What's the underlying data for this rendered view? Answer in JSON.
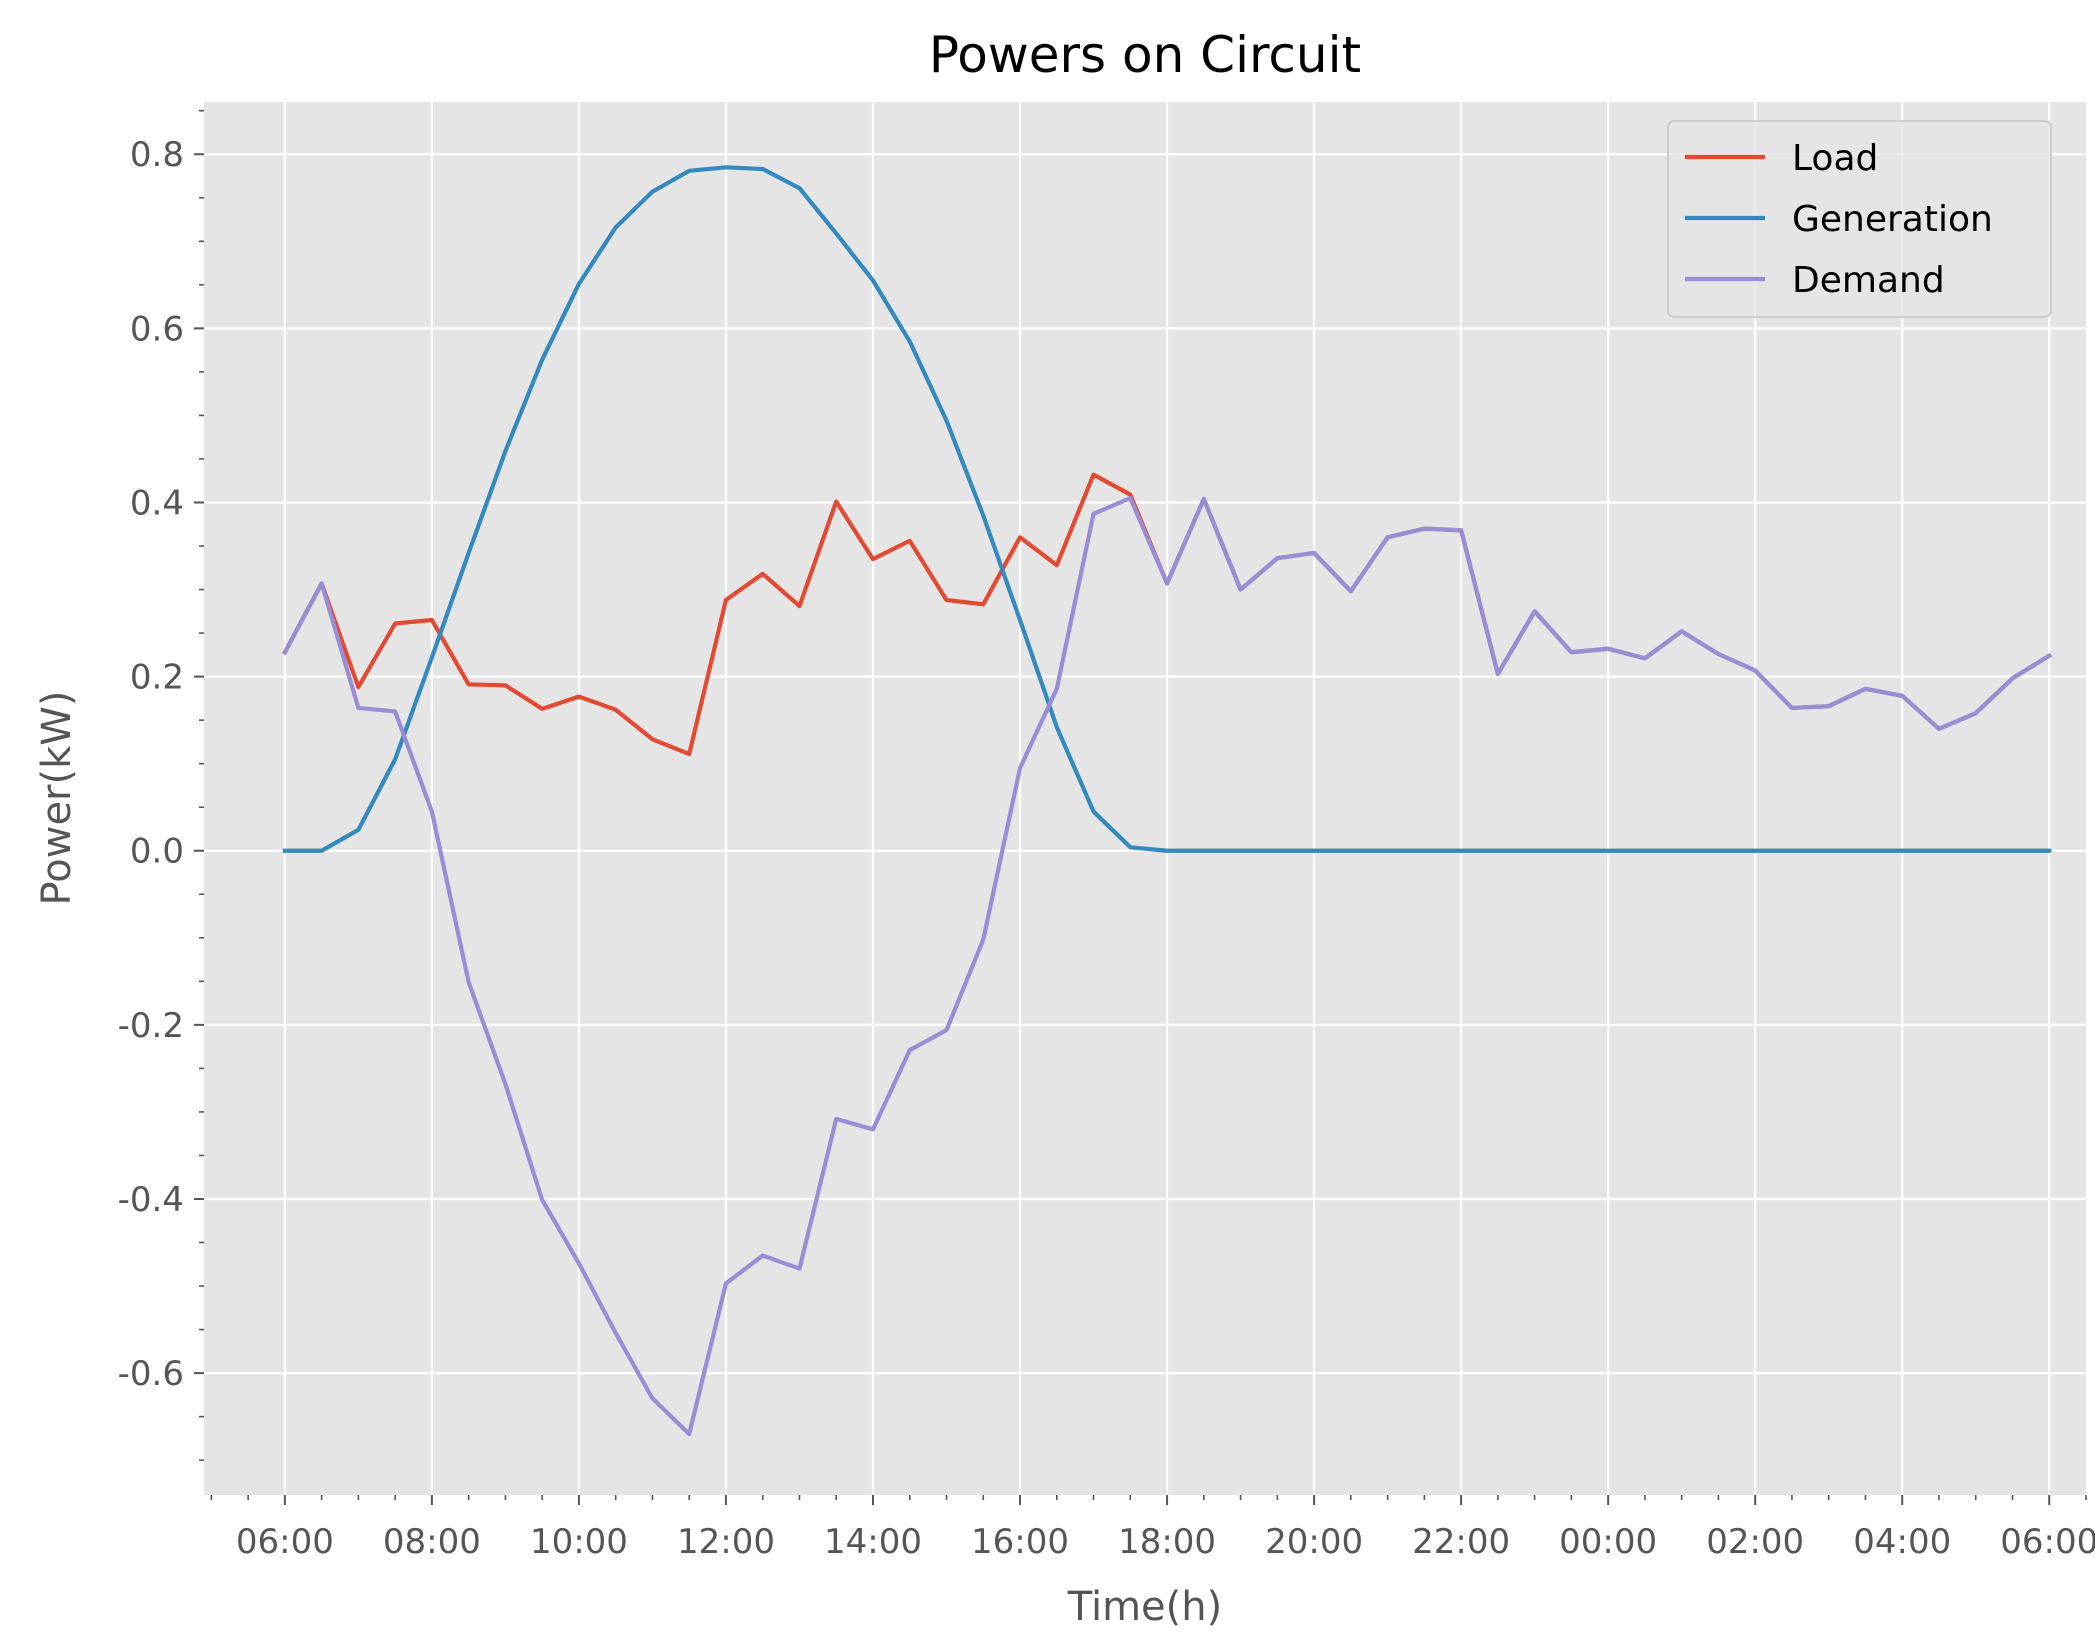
{
  "chart_data": {
    "type": "line",
    "title": "Powers on Circuit",
    "xlabel": "Time(h)",
    "ylabel": "Power(kW)",
    "x_step_hours": 0.5,
    "x_start": "06:00",
    "xlim_hours": [
      -1.1,
      24.5
    ],
    "ylim": [
      -0.74,
      0.86
    ],
    "yticks": [
      -0.6,
      -0.4,
      -0.2,
      0.0,
      0.2,
      0.4,
      0.6,
      0.8
    ],
    "ytick_labels": [
      "-0.6",
      "-0.4",
      "-0.2",
      "0.0",
      "0.2",
      "0.4",
      "0.6",
      "0.8"
    ],
    "xtick_labels": [
      "06:00",
      "08:00",
      "10:00",
      "12:00",
      "14:00",
      "16:00",
      "18:00",
      "20:00",
      "22:00",
      "00:00",
      "02:00",
      "04:00",
      "06:00"
    ],
    "grid": true,
    "legend_position": "top-right",
    "x": [
      "06:00",
      "06:30",
      "07:00",
      "07:30",
      "08:00",
      "08:30",
      "09:00",
      "09:30",
      "10:00",
      "10:30",
      "11:00",
      "11:30",
      "12:00",
      "12:30",
      "13:00",
      "13:30",
      "14:00",
      "14:30",
      "15:00",
      "15:30",
      "16:00",
      "16:30",
      "17:00",
      "17:30",
      "18:00",
      "18:30",
      "19:00",
      "19:30",
      "20:00",
      "20:30",
      "21:00",
      "21:30",
      "22:00",
      "22:30",
      "23:00",
      "23:30",
      "00:00",
      "00:30",
      "01:00",
      "01:30",
      "02:00",
      "02:30",
      "03:00",
      "03:30",
      "04:00",
      "04:30",
      "05:00",
      "05:30",
      "06:00"
    ],
    "series": [
      {
        "name": "Load",
        "color": "#E24A33",
        "values": [
          0.228,
          0.307,
          0.188,
          0.261,
          0.265,
          0.191,
          0.19,
          0.163,
          0.177,
          0.162,
          0.128,
          0.111,
          0.288,
          0.318,
          0.281,
          0.401,
          0.335,
          0.356,
          0.288,
          0.283,
          0.36,
          0.328,
          0.432,
          0.409,
          0.307,
          0.404,
          0.3,
          0.336,
          0.342,
          0.298,
          0.36,
          0.37,
          0.368,
          0.203,
          0.275,
          0.228,
          0.232,
          0.221,
          0.252,
          0.226,
          0.207,
          0.164,
          0.166,
          0.186,
          0.178,
          0.14,
          0.158,
          0.198,
          0.224
        ]
      },
      {
        "name": "Generation",
        "color": "#348ABD",
        "values": [
          0.0,
          0.0,
          0.024,
          0.105,
          0.222,
          0.342,
          0.459,
          0.564,
          0.651,
          0.716,
          0.757,
          0.781,
          0.785,
          0.783,
          0.761,
          0.709,
          0.655,
          0.585,
          0.494,
          0.385,
          0.265,
          0.142,
          0.045,
          0.004,
          0.0,
          0.0,
          0.0,
          0.0,
          0.0,
          0.0,
          0.0,
          0.0,
          0.0,
          0.0,
          0.0,
          0.0,
          0.0,
          0.0,
          0.0,
          0.0,
          0.0,
          0.0,
          0.0,
          0.0,
          0.0,
          0.0,
          0.0,
          0.0,
          0.0
        ]
      },
      {
        "name": "Demand",
        "color": "#988ED5",
        "values": [
          0.228,
          0.307,
          0.164,
          0.16,
          0.045,
          -0.151,
          -0.268,
          -0.401,
          -0.474,
          -0.554,
          -0.629,
          -0.67,
          -0.497,
          -0.465,
          -0.48,
          -0.308,
          -0.32,
          -0.229,
          -0.206,
          -0.102,
          0.095,
          0.186,
          0.387,
          0.405,
          0.307,
          0.404,
          0.3,
          0.336,
          0.342,
          0.298,
          0.36,
          0.37,
          0.368,
          0.203,
          0.275,
          0.228,
          0.232,
          0.221,
          0.252,
          0.226,
          0.207,
          0.164,
          0.166,
          0.186,
          0.178,
          0.14,
          0.158,
          0.198,
          0.224
        ]
      }
    ]
  }
}
